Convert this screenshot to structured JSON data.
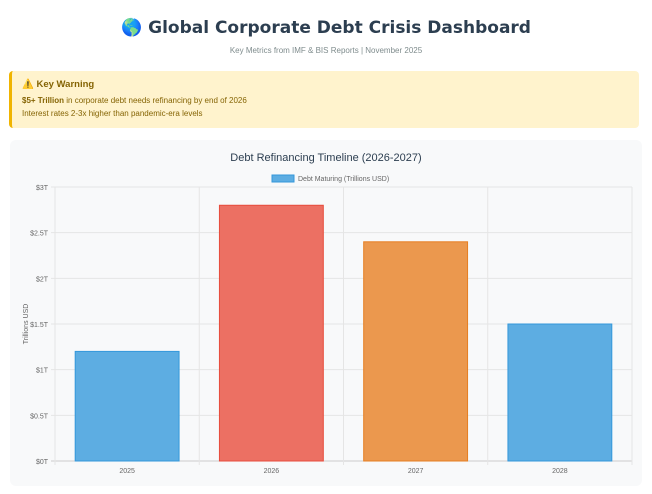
{
  "header": {
    "icon": "globe-icon",
    "title": "Global Corporate Debt Crisis Dashboard",
    "subtitle": "Key Metrics from IMF & BIS Reports | November 2025"
  },
  "warning": {
    "icon": "warning-icon",
    "title": "Key Warning",
    "highlight": "$5+ Trillion",
    "line1_rest": " in corporate debt needs refinancing by end of 2026",
    "line2": "Interest rates 2-3x higher than pandemic-era levels"
  },
  "chart_data": {
    "type": "bar",
    "title": "Debt Refinancing Timeline (2026-2027)",
    "categories": [
      "2025",
      "2026",
      "2027",
      "2028"
    ],
    "series": [
      {
        "name": "Debt Maturing (Trillions USD)",
        "values": [
          1.2,
          2.8,
          2.4,
          1.5
        ]
      }
    ],
    "colors": [
      "#5dade2",
      "#ec7063",
      "#eb984e",
      "#5dade2"
    ],
    "border_colors": [
      "#3498db",
      "#e74c3c",
      "#e67e22",
      "#3498db"
    ],
    "ylabel": "Trillions USD",
    "xlabel": "",
    "ylim": [
      0,
      3
    ],
    "yticks": [
      "$0T",
      "$0.5T",
      "$1T",
      "$1.5T",
      "$2T",
      "$2.5T",
      "$3T"
    ],
    "grid": true,
    "legend": "top"
  }
}
